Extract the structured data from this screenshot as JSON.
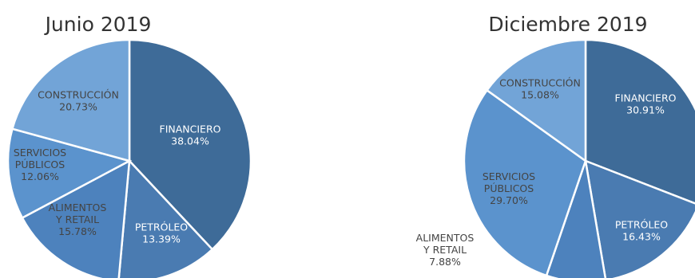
{
  "chart_data": [
    {
      "type": "pie",
      "title": "Junio 2019",
      "slices": [
        {
          "label": [
            "FINANCIERO"
          ],
          "value": 38.04,
          "value_text": "38.04%",
          "color": "#3e6b98",
          "text_color": "#ffffff"
        },
        {
          "label": [
            "PETRÓLEO"
          ],
          "value": 13.39,
          "value_text": "13.39%",
          "color": "#4a7bb1",
          "text_color": "#ffffff"
        },
        {
          "label": [
            "ALIMENTOS",
            "Y RETAIL"
          ],
          "value": 15.78,
          "value_text": "15.78%",
          "color": "#4d82bd",
          "text_color": "#444444"
        },
        {
          "label": [
            "SERVICIOS",
            "PÚBLICOS"
          ],
          "value": 12.06,
          "value_text": "12.06%",
          "color": "#5b93cd",
          "text_color": "#444444"
        },
        {
          "label": [
            "CONSTRUCCIÓN"
          ],
          "value": 20.73,
          "value_text": "20.73%",
          "color": "#72a4d7",
          "text_color": "#444444"
        }
      ]
    },
    {
      "type": "pie",
      "title": "Diciembre 2019",
      "slices": [
        {
          "label": [
            "FINANCIERO"
          ],
          "value": 30.91,
          "value_text": "30.91%",
          "color": "#3e6b98",
          "text_color": "#ffffff"
        },
        {
          "label": [
            "PETRÓLEO"
          ],
          "value": 16.43,
          "value_text": "16.43%",
          "color": "#4a7bb1",
          "text_color": "#ffffff"
        },
        {
          "label": [
            "ALIMENTOS",
            "Y RETAIL"
          ],
          "value": 7.88,
          "value_text": "7.88%",
          "color": "#4d82bd",
          "text_color": "#444444"
        },
        {
          "label": [
            "SERVICIOS",
            "PÚBLICOS"
          ],
          "value": 29.7,
          "value_text": "29.70%",
          "color": "#5b93cd",
          "text_color": "#444444"
        },
        {
          "label": [
            "CONSTRUCCIÓN"
          ],
          "value": 15.08,
          "value_text": "15.08%",
          "color": "#72a4d7",
          "text_color": "#444444"
        }
      ]
    }
  ]
}
